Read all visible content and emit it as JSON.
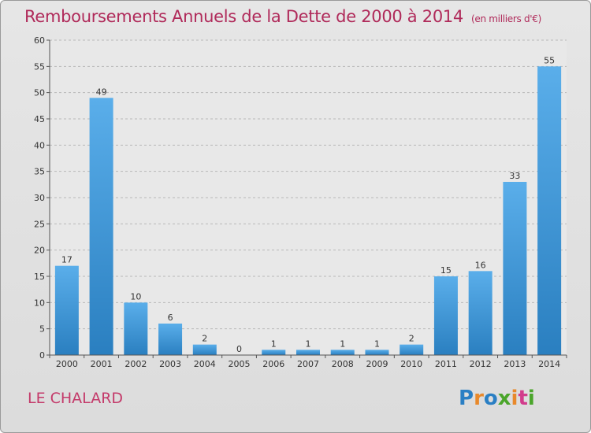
{
  "title": "Remboursements Annuels de la Dette de 2000 à 2014",
  "subtitle": "(en milliers d'€)",
  "commune": "LE CHALARD",
  "logo": {
    "text": "Proxiti",
    "letters": [
      "P",
      "r",
      "o",
      "x",
      "i",
      "t",
      "i"
    ],
    "colors": [
      "#2a7fc4",
      "#e8892b",
      "#2a7fc4",
      "#4aa52a",
      "#e8892b",
      "#d23c8c",
      "#4aa52a"
    ]
  },
  "colors": {
    "title": "#b02a5a",
    "bar_light": "#5aaeea",
    "bar_dark": "#2a7fc0",
    "grid": "#b8b8b8"
  },
  "chart_data": {
    "type": "bar",
    "title": "Remboursements Annuels de la Dette de 2000 à 2014",
    "subtitle": "(en milliers d'€)",
    "xlabel": "",
    "ylabel": "",
    "categories": [
      "2000",
      "2001",
      "2002",
      "2003",
      "2004",
      "2005",
      "2006",
      "2007",
      "2008",
      "2009",
      "2010",
      "2011",
      "2012",
      "2013",
      "2014"
    ],
    "values": [
      17,
      49,
      10,
      6,
      2,
      0,
      1,
      1,
      1,
      1,
      2,
      15,
      16,
      33,
      55
    ],
    "ylim": [
      0,
      60
    ],
    "yticks": [
      0,
      5,
      10,
      15,
      20,
      25,
      30,
      35,
      40,
      45,
      50,
      55,
      60
    ],
    "grid": true,
    "data_labels": true
  }
}
